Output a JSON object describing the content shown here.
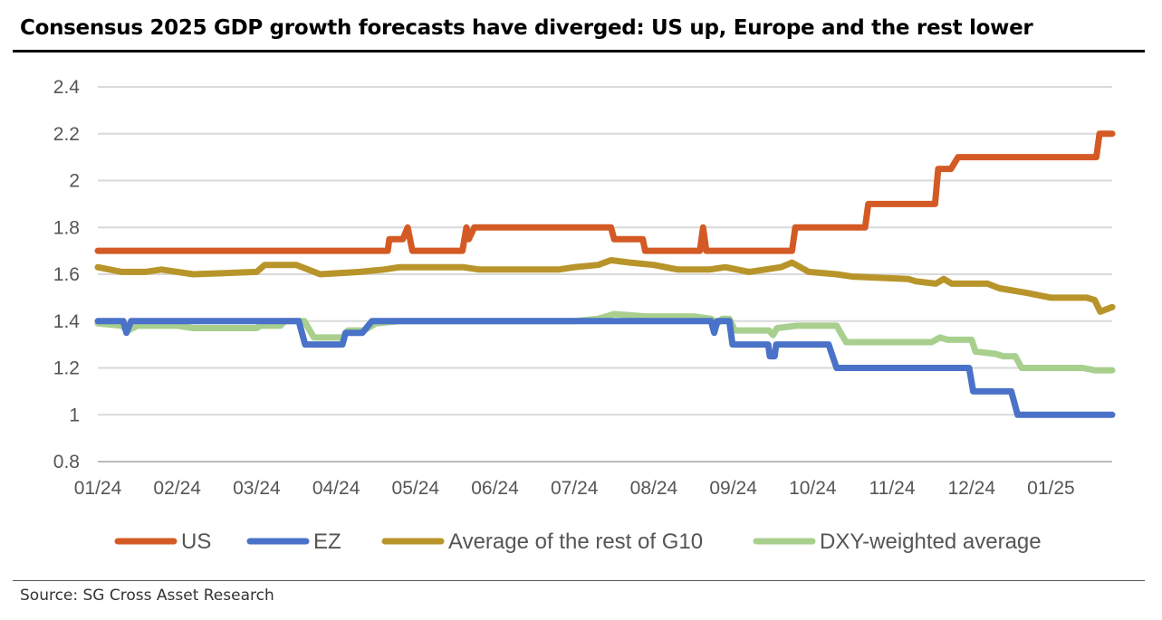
{
  "title": "Consensus 2025 GDP growth forecasts have diverged: US up, Europe and the rest lower",
  "source": "Source: SG Cross Asset Research",
  "chart_data": {
    "type": "line",
    "title": "Consensus 2025 GDP growth forecasts have diverged: US up, Europe and the rest lower",
    "xlabel": "",
    "ylabel": "",
    "x_unit": "months since start of Jan 2024",
    "xlim": [
      0,
      12.77
    ],
    "ylim": [
      0.8,
      2.4
    ],
    "yticks": [
      0.8,
      1,
      1.2,
      1.4,
      1.6,
      1.8,
      2,
      2.2,
      2.4
    ],
    "ytick_labels": [
      "0.8",
      "1",
      "1.2",
      "1.4",
      "1.6",
      "1.8",
      "2",
      "2.2",
      "2.4"
    ],
    "xtick_labels": [
      "01/24",
      "02/24",
      "03/24",
      "04/24",
      "05/24",
      "06/24",
      "07/24",
      "08/24",
      "09/24",
      "10/24",
      "11/24",
      "12/24",
      "01/25"
    ],
    "grid": true,
    "legend_position": "bottom",
    "series": [
      {
        "name": "US",
        "color": "#d45a25",
        "points": [
          [
            0,
            1.7
          ],
          [
            3.65,
            1.7
          ],
          [
            3.67,
            1.75
          ],
          [
            3.84,
            1.75
          ],
          [
            3.9,
            1.8
          ],
          [
            3.96,
            1.7
          ],
          [
            4.59,
            1.7
          ],
          [
            4.64,
            1.8
          ],
          [
            4.67,
            1.75
          ],
          [
            4.74,
            1.8
          ],
          [
            6.46,
            1.8
          ],
          [
            6.5,
            1.75
          ],
          [
            6.86,
            1.75
          ],
          [
            6.89,
            1.7
          ],
          [
            7.58,
            1.7
          ],
          [
            7.62,
            1.8
          ],
          [
            7.66,
            1.7
          ],
          [
            8.74,
            1.7
          ],
          [
            8.78,
            1.8
          ],
          [
            9.66,
            1.8
          ],
          [
            9.7,
            1.9
          ],
          [
            10.54,
            1.9
          ],
          [
            10.58,
            2.05
          ],
          [
            10.74,
            2.05
          ],
          [
            10.83,
            2.1
          ],
          [
            12.57,
            2.1
          ],
          [
            12.61,
            2.2
          ],
          [
            12.77,
            2.2
          ]
        ]
      },
      {
        "name": "EZ",
        "color": "#4a72c8",
        "points": [
          [
            0,
            1.4
          ],
          [
            0.32,
            1.4
          ],
          [
            0.36,
            1.35
          ],
          [
            0.42,
            1.4
          ],
          [
            2.53,
            1.4
          ],
          [
            2.61,
            1.3
          ],
          [
            3.08,
            1.3
          ],
          [
            3.12,
            1.35
          ],
          [
            3.33,
            1.35
          ],
          [
            3.45,
            1.4
          ],
          [
            7.72,
            1.4
          ],
          [
            7.76,
            1.35
          ],
          [
            7.8,
            1.4
          ],
          [
            7.95,
            1.4
          ],
          [
            7.99,
            1.3
          ],
          [
            8.44,
            1.3
          ],
          [
            8.46,
            1.25
          ],
          [
            8.52,
            1.25
          ],
          [
            8.54,
            1.3
          ],
          [
            9.2,
            1.3
          ],
          [
            9.3,
            1.2
          ],
          [
            10.97,
            1.2
          ],
          [
            11.02,
            1.1
          ],
          [
            11.5,
            1.1
          ],
          [
            11.58,
            1.0
          ],
          [
            12.77,
            1.0
          ]
        ]
      },
      {
        "name": "Average of the rest of G10",
        "color": "#b8952a",
        "points": [
          [
            0,
            1.63
          ],
          [
            0.3,
            1.61
          ],
          [
            0.6,
            1.61
          ],
          [
            0.8,
            1.62
          ],
          [
            1.2,
            1.6
          ],
          [
            2.0,
            1.61
          ],
          [
            2.1,
            1.64
          ],
          [
            2.5,
            1.64
          ],
          [
            2.8,
            1.6
          ],
          [
            3.3,
            1.61
          ],
          [
            3.6,
            1.62
          ],
          [
            3.8,
            1.63
          ],
          [
            4.6,
            1.63
          ],
          [
            4.8,
            1.62
          ],
          [
            5.8,
            1.62
          ],
          [
            6.0,
            1.63
          ],
          [
            6.3,
            1.64
          ],
          [
            6.46,
            1.66
          ],
          [
            6.7,
            1.65
          ],
          [
            7.0,
            1.64
          ],
          [
            7.3,
            1.62
          ],
          [
            7.7,
            1.62
          ],
          [
            7.9,
            1.63
          ],
          [
            8.2,
            1.61
          ],
          [
            8.6,
            1.63
          ],
          [
            8.74,
            1.65
          ],
          [
            8.95,
            1.61
          ],
          [
            9.3,
            1.6
          ],
          [
            9.5,
            1.59
          ],
          [
            10.2,
            1.58
          ],
          [
            10.3,
            1.57
          ],
          [
            10.55,
            1.56
          ],
          [
            10.65,
            1.58
          ],
          [
            10.75,
            1.56
          ],
          [
            11.2,
            1.56
          ],
          [
            11.35,
            1.54
          ],
          [
            11.7,
            1.52
          ],
          [
            11.85,
            1.51
          ],
          [
            12.0,
            1.5
          ],
          [
            12.45,
            1.5
          ],
          [
            12.55,
            1.49
          ],
          [
            12.62,
            1.44
          ],
          [
            12.77,
            1.46
          ]
        ]
      },
      {
        "name": "DXY-weighted average",
        "color": "#a8cf8e",
        "points": [
          [
            0,
            1.39
          ],
          [
            0.3,
            1.38
          ],
          [
            0.38,
            1.36
          ],
          [
            0.5,
            1.38
          ],
          [
            1.0,
            1.38
          ],
          [
            1.2,
            1.37
          ],
          [
            2.0,
            1.37
          ],
          [
            2.05,
            1.38
          ],
          [
            2.3,
            1.38
          ],
          [
            2.35,
            1.4
          ],
          [
            2.6,
            1.4
          ],
          [
            2.72,
            1.33
          ],
          [
            3.08,
            1.33
          ],
          [
            3.15,
            1.36
          ],
          [
            3.35,
            1.36
          ],
          [
            3.5,
            1.39
          ],
          [
            3.8,
            1.4
          ],
          [
            6.0,
            1.4
          ],
          [
            6.3,
            1.41
          ],
          [
            6.5,
            1.43
          ],
          [
            6.9,
            1.42
          ],
          [
            7.5,
            1.42
          ],
          [
            7.72,
            1.41
          ],
          [
            7.8,
            1.39
          ],
          [
            7.86,
            1.41
          ],
          [
            7.95,
            1.41
          ],
          [
            8.02,
            1.36
          ],
          [
            8.45,
            1.36
          ],
          [
            8.5,
            1.34
          ],
          [
            8.55,
            1.37
          ],
          [
            8.8,
            1.38
          ],
          [
            9.3,
            1.38
          ],
          [
            9.42,
            1.31
          ],
          [
            10.5,
            1.31
          ],
          [
            10.6,
            1.33
          ],
          [
            10.7,
            1.32
          ],
          [
            11.0,
            1.32
          ],
          [
            11.05,
            1.27
          ],
          [
            11.3,
            1.26
          ],
          [
            11.4,
            1.25
          ],
          [
            11.55,
            1.25
          ],
          [
            11.63,
            1.2
          ],
          [
            12.4,
            1.2
          ],
          [
            12.55,
            1.19
          ],
          [
            12.77,
            1.19
          ]
        ]
      }
    ]
  }
}
